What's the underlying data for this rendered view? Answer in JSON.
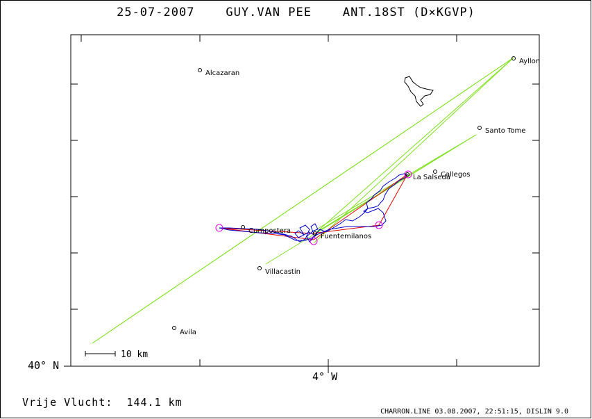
{
  "title": "25-07-2007    GUY.VAN PEE    ANT.18ST (D×KGVP)",
  "map": {
    "lat_label": "40° N",
    "lon_label": "4° W",
    "scale_label": "10 km",
    "towns": [
      {
        "name": "Alcazaran",
        "label": "Alcazaran"
      },
      {
        "name": "Ayllon",
        "label": "Ayllon"
      },
      {
        "name": "Santo Tome",
        "label": "Santo Tome"
      },
      {
        "name": "Callegos",
        "label": "Callegos"
      },
      {
        "name": "La Salseda",
        "label": "La Salseda"
      },
      {
        "name": "Cumpostera",
        "label": "Cumpostera"
      },
      {
        "name": "Fuentemilanos",
        "label": "Fuentemilanos"
      },
      {
        "name": "Villacastin",
        "label": "Villacastin"
      },
      {
        "name": "Avila",
        "label": "Avila"
      }
    ],
    "colors": {
      "task": "#80e020",
      "track": "#0000cc",
      "route": "#e00000",
      "turnpoint": "#e000e0",
      "frame": "#000000"
    }
  },
  "footer": {
    "distance": "Vrije Vlucht:  144.1 km",
    "generator": "CHARRON.LINE 03.08.2007, 22:51:15, DISLIN 9.0"
  }
}
